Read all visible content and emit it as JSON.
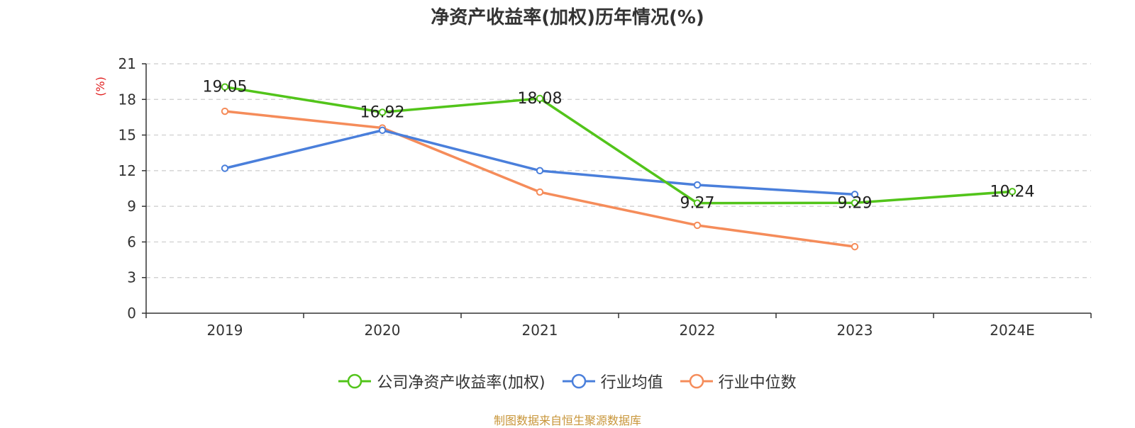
{
  "chart_data": {
    "type": "line",
    "title": "净资产收益率(加权)历年情况(%)",
    "ylabel": "(%)",
    "xlabel": "",
    "categories": [
      "2019",
      "2020",
      "2021",
      "2022",
      "2023",
      "2024E"
    ],
    "ylim": [
      0,
      21
    ],
    "yticks": [
      0,
      3,
      6,
      9,
      12,
      15,
      18,
      21
    ],
    "grid": true,
    "legend_position": "bottom",
    "series": [
      {
        "name": "公司净资产收益率(加权)",
        "color": "#52c41a",
        "values": [
          19.05,
          16.92,
          18.08,
          9.27,
          9.29,
          10.24
        ],
        "labels": [
          "19.05",
          "16.92",
          "18.08",
          "9.27",
          "9.29",
          "10.24"
        ]
      },
      {
        "name": "行业均值",
        "color": "#4a7fdb",
        "values": [
          12.2,
          15.4,
          12.0,
          10.8,
          10.0,
          null
        ]
      },
      {
        "name": "行业中位数",
        "color": "#f58c5a",
        "values": [
          17.0,
          15.6,
          10.2,
          7.4,
          5.6,
          null
        ]
      }
    ]
  },
  "source_note": "制图数据来自恒生聚源数据库"
}
